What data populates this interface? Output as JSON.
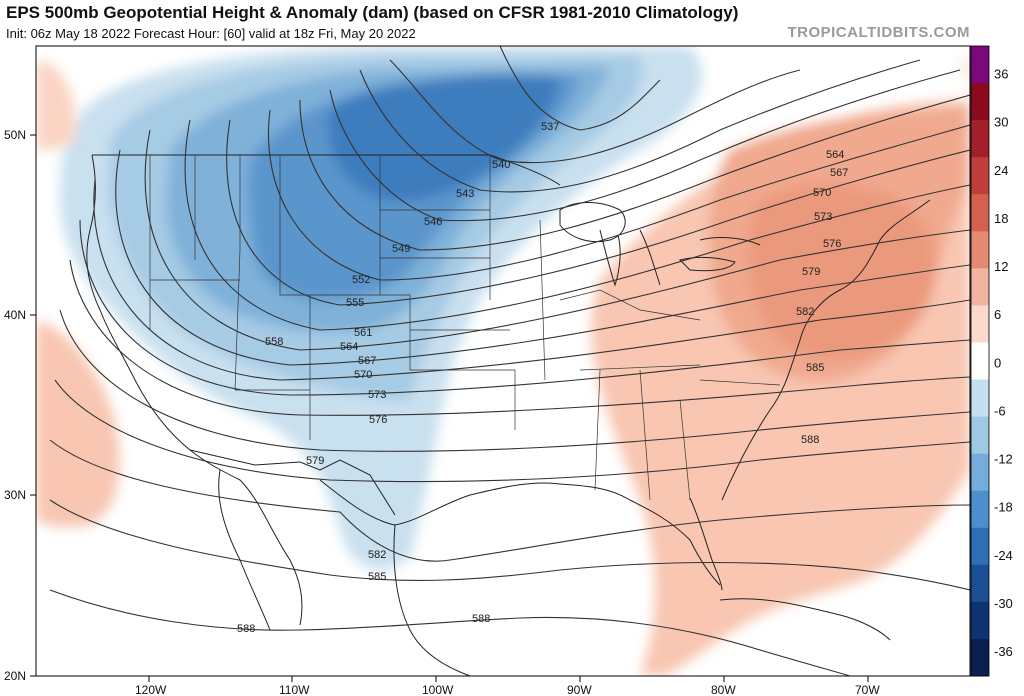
{
  "header": {
    "title": "EPS 500mb Geopotential Height & Anomaly (dam) (based on CFSR 1981-2010 Climatology)",
    "subtitle": "Init: 06z May 18 2022   Forecast Hour: [60]   valid at 18z Fri, May 20 2022",
    "brand": "TROPICALTIDBITS.COM"
  },
  "map": {
    "lon_labels": [
      "120W",
      "110W",
      "100W",
      "90W",
      "80W",
      "70W"
    ],
    "lat_labels": [
      "50N",
      "40N",
      "30N",
      "20N"
    ],
    "contour_labels": [
      "537",
      "540",
      "543",
      "546",
      "549",
      "552",
      "555",
      "558",
      "561",
      "564",
      "567",
      "570",
      "573",
      "576",
      "579",
      "582",
      "585",
      "588",
      "564",
      "567",
      "570",
      "573",
      "576",
      "579",
      "582",
      "585",
      "588",
      "588",
      "588",
      "585",
      "582",
      "579"
    ]
  },
  "colorbar": {
    "labels": [
      "36",
      "30",
      "24",
      "18",
      "12",
      "6",
      "0",
      "-6",
      "-12",
      "-18",
      "-24",
      "-30",
      "-36"
    ],
    "colors": [
      "#7a0a7a",
      "#8b0a1e",
      "#a3202a",
      "#bf3d3a",
      "#d4604f",
      "#e48a72",
      "#f2b49e",
      "#fbd9cc",
      "#ffffff",
      "#c6dff0",
      "#9ec9e2",
      "#74addb",
      "#4b8fcd",
      "#2c6fb5",
      "#1a4f96",
      "#0d3372",
      "#0a1f52"
    ]
  }
}
